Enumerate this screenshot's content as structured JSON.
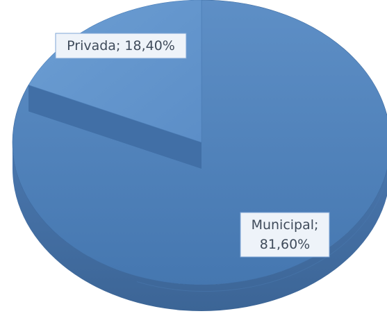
{
  "chart_data": {
    "type": "pie",
    "style": "3d-exploded",
    "categories": [
      "Privada",
      "Municipal"
    ],
    "values": [
      18.4,
      81.6
    ],
    "data_labels": [
      "Privada; 18,40%",
      "Municipal;\n81,60%"
    ],
    "colors": {
      "municipal": "#4F81BD",
      "privada": "#6A9BD0"
    },
    "title": "",
    "legend": "none"
  }
}
